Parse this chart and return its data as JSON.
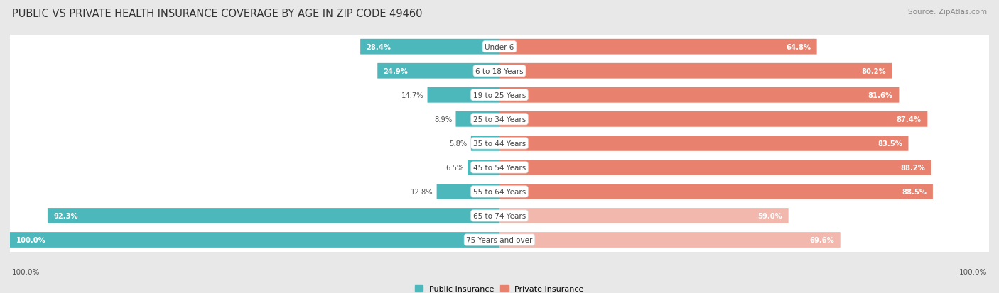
{
  "title": "PUBLIC VS PRIVATE HEALTH INSURANCE COVERAGE BY AGE IN ZIP CODE 49460",
  "source": "Source: ZipAtlas.com",
  "categories": [
    "Under 6",
    "6 to 18 Years",
    "19 to 25 Years",
    "25 to 34 Years",
    "35 to 44 Years",
    "45 to 54 Years",
    "55 to 64 Years",
    "65 to 74 Years",
    "75 Years and over"
  ],
  "public_values": [
    28.4,
    24.9,
    14.7,
    8.9,
    5.8,
    6.5,
    12.8,
    92.3,
    100.0
  ],
  "private_values": [
    64.8,
    80.2,
    81.6,
    87.4,
    83.5,
    88.2,
    88.5,
    59.0,
    69.6
  ],
  "public_color": "#4db8bc",
  "private_color_normal": "#e8826e",
  "private_color_light": "#f2b8ae",
  "bg_color": "#e8e8e8",
  "row_bg_color": "#ffffff",
  "row_shadow_color": "#cccccc",
  "bar_height": 0.58,
  "max_value": 100.0,
  "figsize": [
    14.06,
    4.14
  ],
  "dpi": 100,
  "title_fontsize": 10.5,
  "label_fontsize": 7.5,
  "value_fontsize": 7.2,
  "legend_fontsize": 8,
  "inside_label_threshold": 15
}
